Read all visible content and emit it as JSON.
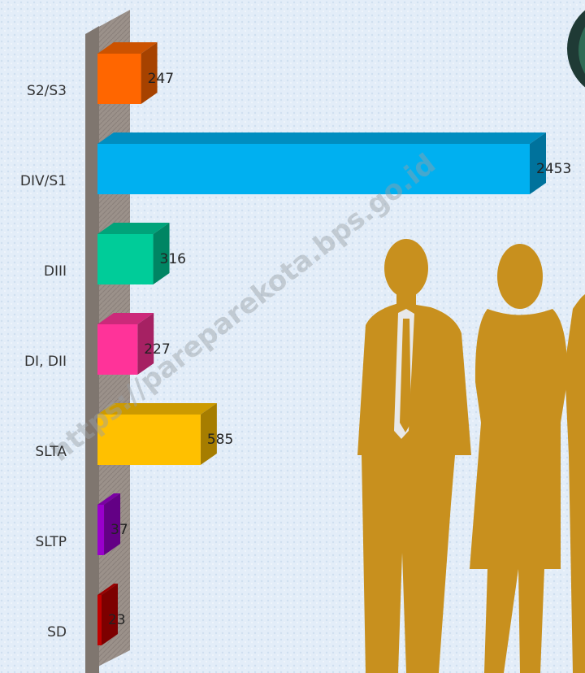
{
  "chart_data": {
    "type": "bar",
    "orientation": "horizontal",
    "categories": [
      "S2/S3",
      "DIV/S1",
      "DIII",
      "DI, DII",
      "SLTA",
      "SLTP",
      "SD"
    ],
    "values": [
      247,
      2453,
      316,
      227,
      585,
      37,
      23
    ],
    "colors": [
      "#ff6600",
      "#00b0f0",
      "#00cc99",
      "#ff3399",
      "#ffc000",
      "#9900cc",
      "#c00000"
    ],
    "watermark": "https://pareparekota.bps.go.id"
  }
}
